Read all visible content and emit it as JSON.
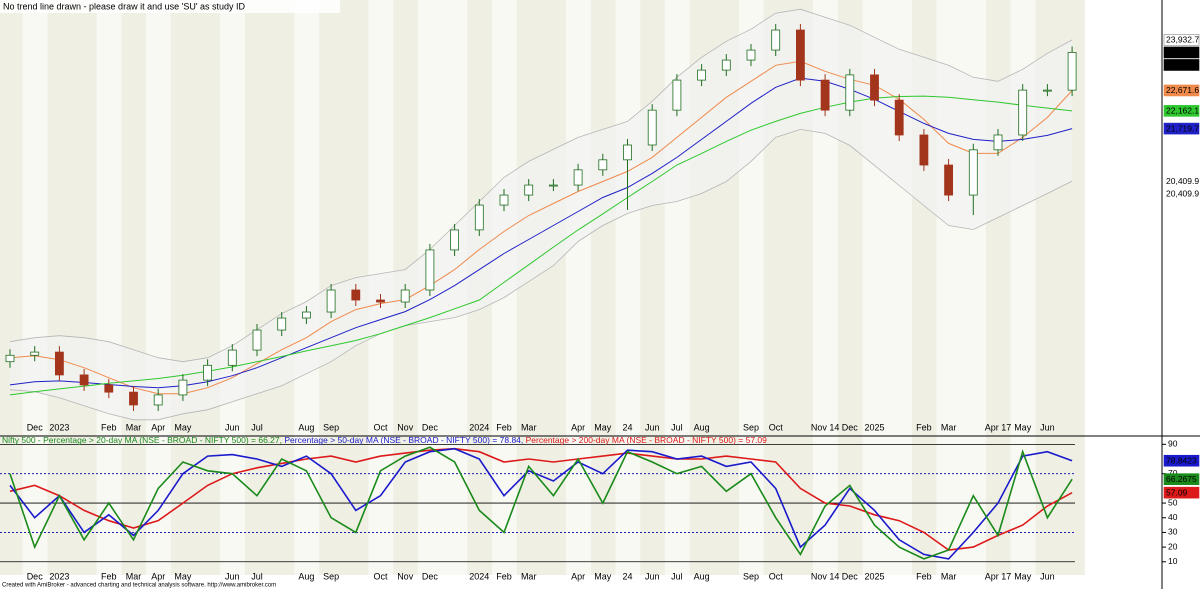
{
  "chart_data": [
    {
      "type": "candlestick",
      "title": "No trend line drawn - please draw it and use 'SU' as study ID",
      "categories": [
        null,
        "Dec",
        "2023",
        null,
        "Feb",
        "Mar",
        "Apr",
        "May",
        null,
        "Jun",
        "Jul",
        null,
        "Aug",
        "Sep",
        null,
        "Oct",
        "Nov",
        "Dec",
        null,
        "2024",
        "Feb",
        "Mar",
        null,
        "Apr",
        "May",
        "24",
        "Jun",
        "Jul",
        "Aug",
        null,
        "Sep",
        "Oct",
        null,
        "Nov 14",
        "Dec",
        "2025",
        null,
        "Feb",
        "Mar",
        null,
        "Apr 17",
        "May",
        "Jun",
        null
      ],
      "open": [
        15900,
        16060,
        16140,
        15570,
        15320,
        15140,
        14820,
        15070,
        15440,
        15810,
        16190,
        16690,
        16990,
        17140,
        17690,
        17440,
        17390,
        17690,
        18690,
        19190,
        19810,
        20060,
        20310,
        20310,
        20690,
        20940,
        21310,
        22180,
        22930,
        23180,
        23430,
        23680,
        24180,
        22930,
        22180,
        23060,
        22430,
        21560,
        20810,
        20060,
        21190,
        21560,
        22680,
        22680
      ],
      "high": [
        16210,
        16290,
        16290,
        15720,
        15470,
        15290,
        15220,
        15590,
        15960,
        16340,
        16840,
        17140,
        17290,
        17840,
        17840,
        17590,
        17840,
        18840,
        19340,
        19960,
        20210,
        20460,
        20460,
        20840,
        21090,
        21460,
        22330,
        23080,
        23330,
        23580,
        23830,
        24330,
        24330,
        23080,
        23210,
        23210,
        22580,
        21710,
        20960,
        21340,
        21710,
        22830,
        22830,
        23770
      ],
      "low": [
        15750,
        15910,
        15420,
        15170,
        14990,
        14670,
        14670,
        14920,
        15290,
        15660,
        16040,
        16540,
        16840,
        16990,
        17290,
        17240,
        17240,
        17540,
        18540,
        19040,
        19660,
        19910,
        20160,
        20160,
        20540,
        19690,
        21160,
        22030,
        22780,
        23030,
        23280,
        23530,
        22780,
        22030,
        22030,
        22280,
        21410,
        20660,
        19910,
        19560,
        21040,
        21410,
        22530,
        22530
      ],
      "close": [
        16060,
        16140,
        15570,
        15320,
        15140,
        14820,
        15070,
        15440,
        15810,
        16190,
        16690,
        16990,
        17140,
        17690,
        17440,
        17390,
        17690,
        18690,
        19190,
        19810,
        20060,
        20310,
        20310,
        20690,
        20940,
        21310,
        22180,
        22930,
        23180,
        23430,
        23680,
        24180,
        22930,
        22180,
        23060,
        22430,
        21560,
        20810,
        20060,
        21190,
        21560,
        22680,
        22680,
        23620.2
      ],
      "close_labels": [
        "23,620.2",
        "23,620.2"
      ],
      "up_color": "#1f6e1f",
      "down_color": "#a3351c",
      "band": {
        "upper": [
          16400,
          16500,
          16550,
          16500,
          16400,
          16200,
          16000,
          15900,
          16000,
          16300,
          16700,
          17100,
          17400,
          17800,
          18000,
          18100,
          18200,
          18700,
          19300,
          19900,
          20500,
          20900,
          21200,
          21500,
          21700,
          21900,
          22400,
          23000,
          23500,
          23900,
          24200,
          24600,
          24700,
          24500,
          24300,
          24000,
          23700,
          23500,
          23300,
          23000,
          22900,
          23200,
          23600,
          23932.7
        ],
        "lower": [
          15200,
          15150,
          15000,
          14800,
          14600,
          14450,
          14450,
          14600,
          14700,
          14900,
          15100,
          15300,
          15600,
          15900,
          16300,
          16600,
          16800,
          16900,
          17000,
          17200,
          17500,
          17900,
          18300,
          18900,
          19300,
          19600,
          19800,
          19900,
          20100,
          20400,
          20900,
          21500,
          21700,
          21600,
          21300,
          20800,
          20300,
          19800,
          19300,
          19200,
          19500,
          19800,
          20100,
          20409.9
        ],
        "upper_labels": [
          "23,932.7"
        ],
        "lower_labels": [
          "20,409.9",
          "20,409.9"
        ],
        "fill": "#f1f1f1",
        "stroke": "#b5b5b5"
      },
      "overlays": [
        {
          "color": "#f08a4b",
          "values": [
            16000,
            16050,
            15950,
            15750,
            15500,
            15250,
            15100,
            15100,
            15250,
            15500,
            15850,
            16200,
            16500,
            16900,
            17200,
            17350,
            17450,
            17800,
            18200,
            18700,
            19150,
            19550,
            19850,
            20150,
            20400,
            20650,
            21000,
            21500,
            22000,
            22500,
            22900,
            23300,
            23400,
            23150,
            22950,
            22800,
            22450,
            21950,
            21350,
            21100,
            21100,
            21500,
            22000,
            22671.6
          ],
          "labels": [
            "22,671.6"
          ]
        },
        {
          "color": "#2020c8",
          "values": [
            15320,
            15400,
            15420,
            15380,
            15330,
            15280,
            15250,
            15300,
            15400,
            15550,
            15750,
            16000,
            16250,
            16500,
            16750,
            16950,
            17150,
            17450,
            17800,
            18200,
            18600,
            18950,
            19300,
            19650,
            20000,
            20250,
            20600,
            21000,
            21450,
            21900,
            22350,
            22750,
            22980,
            22900,
            22700,
            22450,
            22150,
            21850,
            21600,
            21450,
            21400,
            21450,
            21550,
            21719.7
          ],
          "labels": [
            "21,719.7"
          ]
        },
        {
          "color": "#2ec82e",
          "values": [
            15070,
            15150,
            15220,
            15290,
            15360,
            15420,
            15480,
            15560,
            15660,
            15770,
            15900,
            16030,
            16170,
            16300,
            16430,
            16600,
            16800,
            17000,
            17220,
            17440,
            17880,
            18320,
            18760,
            19190,
            19590,
            20000,
            20400,
            20810,
            21100,
            21400,
            21680,
            21900,
            22100,
            22250,
            22380,
            22480,
            22520,
            22530,
            22500,
            22440,
            22380,
            22300,
            22230,
            22162.1
          ],
          "labels": [
            "22,162.1"
          ]
        }
      ],
      "ylim": [
        14070,
        24930
      ]
    },
    {
      "type": "line",
      "categories": [
        null,
        "Dec",
        "2023",
        null,
        "Feb",
        "Mar",
        "Apr",
        "May",
        null,
        "Jun",
        "Jul",
        null,
        "Aug",
        "Sep",
        null,
        "Oct",
        "Nov",
        "Dec",
        null,
        "2024",
        "Feb",
        "Mar",
        null,
        "Apr",
        "May",
        "24",
        "Jun",
        "Jul",
        "Aug",
        null,
        "Sep",
        "Oct",
        null,
        "Nov 14",
        "Dec",
        "2025",
        null,
        "Feb",
        "Mar",
        null,
        "Apr 17",
        "May",
        "Jun",
        null
      ],
      "series": [
        {
          "name": "Nifty 500 - Percentage > 20-day MA (NSE - BROAD - NIFTY 500) = 66.27,",
          "color": "#1a8a1a",
          "last_label": "66.2675",
          "values": [
            70,
            20,
            55,
            25,
            50,
            25,
            60,
            78,
            72,
            70,
            55,
            80,
            72,
            40,
            30,
            72,
            82,
            88,
            78,
            45,
            30,
            75,
            55,
            80,
            50,
            85,
            78,
            70,
            75,
            58,
            70,
            40,
            15,
            48,
            62,
            35,
            20,
            12,
            18,
            55,
            28,
            85,
            40,
            66.27
          ]
        },
        {
          "name": " Percentage > 50-day MA (NSE - BROAD - NIFTY 500) = 78.84,",
          "color": "#1a1acc",
          "last_label": "78.8423",
          "values": [
            62,
            40,
            55,
            30,
            42,
            28,
            45,
            70,
            82,
            83,
            80,
            75,
            82,
            70,
            45,
            55,
            78,
            85,
            87,
            80,
            55,
            72,
            65,
            78,
            70,
            86,
            85,
            80,
            82,
            75,
            78,
            60,
            20,
            35,
            60,
            45,
            25,
            15,
            12,
            30,
            50,
            82,
            85,
            78.84
          ]
        },
        {
          "name": " Percentage > 200-day MA (NSE - BROAD - NIFTY 500) = 57.09",
          "color": "#dd1a1a",
          "last_label": "57.09",
          "values": [
            58,
            62,
            55,
            45,
            38,
            33,
            38,
            50,
            62,
            70,
            74,
            77,
            80,
            82,
            78,
            82,
            84,
            86,
            87,
            85,
            78,
            80,
            78,
            80,
            82,
            84,
            82,
            80,
            80,
            82,
            80,
            78,
            60,
            50,
            48,
            42,
            38,
            30,
            18,
            20,
            28,
            35,
            48,
            57.09
          ]
        }
      ],
      "ylim": [
        1,
        95
      ],
      "yticks": [
        10,
        20,
        30,
        40,
        50,
        70,
        90
      ],
      "solid_lines": [
        10,
        50,
        90
      ],
      "dotted_lines": [
        30,
        70
      ]
    }
  ],
  "footer": "Created with AmiBroker - advanced charting and technical analysis software. http://www.amibroker.com"
}
